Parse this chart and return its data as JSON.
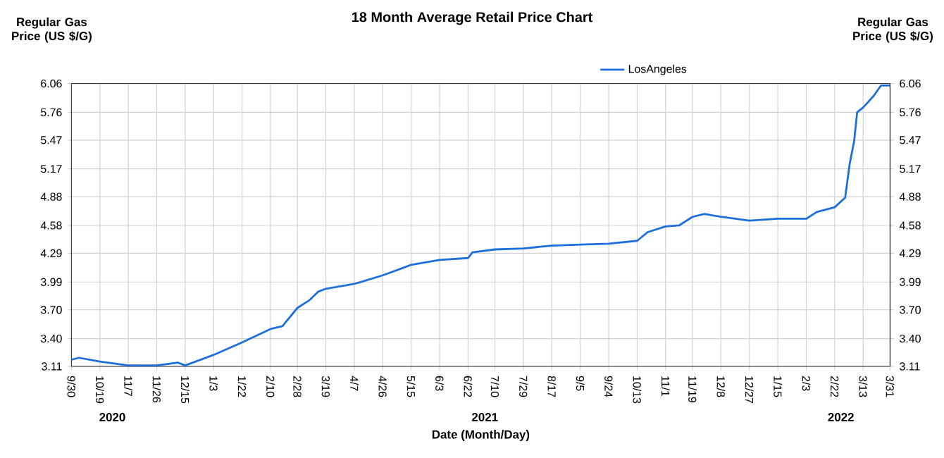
{
  "chart_data": {
    "type": "line",
    "title": "18 Month Average Retail Price Chart",
    "xlabel": "Date (Month/Day)",
    "ylabel": "Regular Gas Price (US $/G)",
    "y2label": "Regular Gas Price (US $/G)",
    "x": [
      "2020-09-30",
      "2020-10-05",
      "2020-10-19",
      "2020-11-07",
      "2020-11-26",
      "2020-12-10",
      "2020-12-15",
      "2021-01-03",
      "2021-01-22",
      "2021-02-10",
      "2021-02-18",
      "2021-02-28",
      "2021-03-08",
      "2021-03-14",
      "2021-03-19",
      "2021-04-07",
      "2021-04-26",
      "2021-05-10",
      "2021-05-15",
      "2021-06-03",
      "2021-06-22",
      "2021-06-25",
      "2021-07-10",
      "2021-07-29",
      "2021-08-17",
      "2021-09-05",
      "2021-09-24",
      "2021-10-13",
      "2021-10-20",
      "2021-11-01",
      "2021-11-10",
      "2021-11-19",
      "2021-11-27",
      "2021-12-08",
      "2021-12-27",
      "2022-01-15",
      "2022-02-03",
      "2022-02-10",
      "2022-02-22",
      "2022-03-01",
      "2022-03-04",
      "2022-03-07",
      "2022-03-09",
      "2022-03-13",
      "2022-03-20",
      "2022-03-25",
      "2022-03-31"
    ],
    "series": [
      {
        "name": "LosAngeles",
        "color": "#1e6fdc",
        "values": [
          3.18,
          3.2,
          3.16,
          3.12,
          3.12,
          3.15,
          3.12,
          3.23,
          3.36,
          3.5,
          3.53,
          3.72,
          3.8,
          3.89,
          3.92,
          3.97,
          4.06,
          4.14,
          4.17,
          4.22,
          4.24,
          4.3,
          4.33,
          4.34,
          4.37,
          4.38,
          4.39,
          4.42,
          4.51,
          4.57,
          4.58,
          4.67,
          4.7,
          4.67,
          4.63,
          4.65,
          4.65,
          4.72,
          4.77,
          4.87,
          5.22,
          5.46,
          5.76,
          5.81,
          5.93,
          6.04,
          6.04
        ]
      }
    ],
    "xlim": [
      "2020-09-30",
      "2022-03-31"
    ],
    "xticks": [
      {
        "value": "2020-09-30",
        "label": "9/30"
      },
      {
        "value": "2020-10-19",
        "label": "10/19"
      },
      {
        "value": "2020-11-07",
        "label": "11/7"
      },
      {
        "value": "2020-11-26",
        "label": "11/26"
      },
      {
        "value": "2020-12-15",
        "label": "12/15"
      },
      {
        "value": "2021-01-03",
        "label": "1/3"
      },
      {
        "value": "2021-01-22",
        "label": "1/22"
      },
      {
        "value": "2021-02-10",
        "label": "2/10"
      },
      {
        "value": "2021-02-28",
        "label": "2/28"
      },
      {
        "value": "2021-03-19",
        "label": "3/19"
      },
      {
        "value": "2021-04-07",
        "label": "4/7"
      },
      {
        "value": "2021-04-26",
        "label": "4/26"
      },
      {
        "value": "2021-05-15",
        "label": "5/15"
      },
      {
        "value": "2021-06-03",
        "label": "6/3"
      },
      {
        "value": "2021-06-22",
        "label": "6/22"
      },
      {
        "value": "2021-07-10",
        "label": "7/10"
      },
      {
        "value": "2021-07-29",
        "label": "7/29"
      },
      {
        "value": "2021-08-17",
        "label": "8/17"
      },
      {
        "value": "2021-09-05",
        "label": "9/5"
      },
      {
        "value": "2021-09-24",
        "label": "9/24"
      },
      {
        "value": "2021-10-13",
        "label": "10/13"
      },
      {
        "value": "2021-11-01",
        "label": "11/1"
      },
      {
        "value": "2021-11-19",
        "label": "11/19"
      },
      {
        "value": "2021-12-08",
        "label": "12/8"
      },
      {
        "value": "2021-12-27",
        "label": "12/27"
      },
      {
        "value": "2022-01-15",
        "label": "1/15"
      },
      {
        "value": "2022-02-03",
        "label": "2/3"
      },
      {
        "value": "2022-02-22",
        "label": "2/22"
      },
      {
        "value": "2022-03-13",
        "label": "3/13"
      },
      {
        "value": "2022-03-31",
        "label": "3/31"
      }
    ],
    "ylim": [
      3.11,
      6.06
    ],
    "yticks": [
      3.11,
      {
        "value": 3.4,
        "label": "3.40"
      },
      {
        "value": 3.7,
        "label": "3.70"
      },
      3.99,
      4.29,
      4.58,
      4.88,
      5.17,
      5.47,
      5.76,
      6.06
    ],
    "y2lim": [
      3.11,
      6.06
    ],
    "y2ticks": [
      3.11,
      {
        "value": 3.4,
        "label": "3.40"
      },
      {
        "value": 3.7,
        "label": "3.70"
      },
      3.99,
      4.29,
      4.58,
      4.88,
      5.17,
      5.47,
      5.76,
      6.06
    ],
    "annotations": [
      "2020",
      "2021",
      "2022"
    ],
    "grid": true,
    "legend": "top",
    "marker": "none",
    "line_style": "solid"
  }
}
